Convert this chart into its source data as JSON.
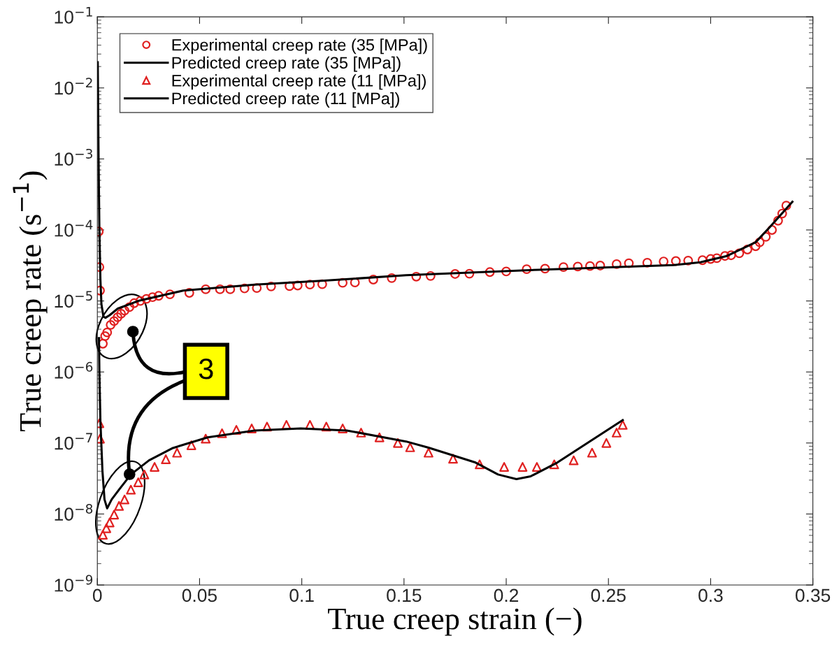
{
  "chart_data": {
    "type": "scatter",
    "xlabel": "True creep strain (−)",
    "ylabel": "True creep rate (s$^{−1}$)",
    "log": "y",
    "xlim": [
      0,
      0.35
    ],
    "xticks": [
      0,
      0.05,
      0.1,
      0.15,
      0.2,
      0.25,
      0.3,
      0.35
    ],
    "ylim": [
      1e-09,
      0.1
    ],
    "yticks": [
      {
        "value": 1e-09,
        "label": "10$^{−9}$"
      },
      {
        "value": 1e-08,
        "label": "10$^{−8}$"
      },
      {
        "value": 1e-07,
        "label": "10$^{−7}$"
      },
      {
        "value": 1e-06,
        "label": "10$^{−6}$"
      },
      {
        "value": 1e-05,
        "label": "10$^{−5}$"
      },
      {
        "value": 0.0001,
        "label": "10$^{−4}$"
      },
      {
        "value": 0.001,
        "label": "10$^{−3}$"
      },
      {
        "value": 0.01,
        "label": "10$^{−2}$"
      },
      {
        "value": 0.1,
        "label": "10$^{−1}$"
      }
    ],
    "grid": false,
    "legend": "top left",
    "annotations": [
      {
        "text": "3",
        "x": 0.0174,
        "y": 3.7e-06
      }
    ],
    "series": [
      {
        "name": "Experimental creep rate (35 [MPa])",
        "marker": "circle",
        "color": "#e02020",
        "x": [
          0.0007,
          0.001,
          0.0013,
          0.0027,
          0.0038,
          0.0048,
          0.0065,
          0.0082,
          0.0099,
          0.0116,
          0.0133,
          0.0157,
          0.018,
          0.021,
          0.024,
          0.027,
          0.03,
          0.0355,
          0.045,
          0.053,
          0.06,
          0.065,
          0.072,
          0.078,
          0.085,
          0.094,
          0.098,
          0.104,
          0.11,
          0.12,
          0.126,
          0.135,
          0.144,
          0.156,
          0.163,
          0.175,
          0.182,
          0.192,
          0.2,
          0.21,
          0.219,
          0.228,
          0.235,
          0.241,
          0.246,
          0.254,
          0.26,
          0.269,
          0.277,
          0.283,
          0.289,
          0.296,
          0.3,
          0.303,
          0.307,
          0.31,
          0.314,
          0.318,
          0.322,
          0.324,
          0.327,
          0.33,
          0.333,
          0.335,
          0.337
        ],
        "values": [
          9.5e-05,
          3e-05,
          1.4e-05,
          2.5e-06,
          3.2e-06,
          3.6e-06,
          4.6e-06,
          5.2e-06,
          5.9e-06,
          6.6e-06,
          7.3e-06,
          8.2e-06,
          9.3e-06,
          1e-05,
          1.07e-05,
          1.13e-05,
          1.18e-05,
          1.24e-05,
          1.3e-05,
          1.46e-05,
          1.46e-05,
          1.46e-05,
          1.5e-05,
          1.52e-05,
          1.6e-05,
          1.62e-05,
          1.65e-05,
          1.7e-05,
          1.72e-05,
          1.8e-05,
          1.82e-05,
          2e-05,
          2.1e-05,
          2.2e-05,
          2.25e-05,
          2.4e-05,
          2.42e-05,
          2.55e-05,
          2.6e-05,
          2.8e-05,
          2.85e-05,
          3e-05,
          3.05e-05,
          3.1e-05,
          3.15e-05,
          3.3e-05,
          3.4e-05,
          3.45e-05,
          3.6e-05,
          3.65e-05,
          3.7e-05,
          3.75e-05,
          3.9e-05,
          4e-05,
          4.3e-05,
          4.4e-05,
          4.7e-05,
          5.3e-05,
          5.9e-05,
          6.7e-05,
          8e-05,
          0.0001,
          0.000135,
          0.00017,
          0.00022
        ]
      },
      {
        "name": "Predicted creep rate (35 [MPa])",
        "type": "line",
        "marker": "none",
        "color": "#000000",
        "x": [
          0.0002,
          0.0006,
          0.001,
          0.0015,
          0.002,
          0.003,
          0.004,
          0.006,
          0.01,
          0.02,
          0.042,
          0.077,
          0.111,
          0.151,
          0.216,
          0.282,
          0.295,
          0.308,
          0.322,
          0.329,
          0.34
        ],
        "values": [
          0.023,
          0.001,
          0.0001,
          2e-05,
          9e-06,
          6e-06,
          5.8e-06,
          6.3e-06,
          7.8e-06,
          1e-05,
          1.4e-05,
          1.7e-05,
          1.93e-05,
          2.3e-05,
          2.75e-05,
          3.2e-05,
          3.5e-05,
          4.3e-05,
          6.7e-05,
          0.00011,
          0.00025
        ]
      },
      {
        "name": "Experimental creep rate (11 [MPa])",
        "marker": "triangle",
        "color": "#e02020",
        "x": [
          0.001,
          0.0013,
          0.0027,
          0.0044,
          0.006,
          0.0082,
          0.0106,
          0.0133,
          0.0164,
          0.02,
          0.023,
          0.028,
          0.0335,
          0.039,
          0.046,
          0.053,
          0.061,
          0.068,
          0.0755,
          0.083,
          0.0925,
          0.104,
          0.112,
          0.12,
          0.129,
          0.138,
          0.147,
          0.153,
          0.162,
          0.174,
          0.187,
          0.199,
          0.208,
          0.215,
          0.2235,
          0.233,
          0.242,
          0.249,
          0.254,
          0.257
        ],
        "values": [
          1.9e-07,
          1.15e-07,
          5.1e-09,
          6.3e-09,
          7.6e-09,
          9.8e-09,
          1.3e-08,
          1.6e-08,
          2.2e-08,
          2.8e-08,
          3.6e-08,
          4.6e-08,
          5.9e-08,
          7.3e-08,
          9.3e-08,
          1.15e-07,
          1.37e-07,
          1.53e-07,
          1.6e-07,
          1.7e-07,
          1.8e-07,
          1.8e-07,
          1.7e-07,
          1.6e-07,
          1.4e-07,
          1.2e-07,
          1e-07,
          8.7e-08,
          7.3e-08,
          6e-08,
          5e-08,
          4.6e-08,
          4.6e-08,
          4.6e-08,
          5e-08,
          5.7e-08,
          7.3e-08,
          1e-07,
          1.4e-07,
          1.8e-07
        ]
      },
      {
        "name": "Predicted creep rate (11 [MPa])",
        "type": "line",
        "marker": "none",
        "color": "#000000",
        "x": [
          0.0008,
          0.001,
          0.0015,
          0.0025,
          0.0035,
          0.0048,
          0.007,
          0.0106,
          0.0164,
          0.0253,
          0.037,
          0.054,
          0.077,
          0.0995,
          0.122,
          0.151,
          0.162,
          0.185,
          0.196,
          0.205,
          0.212,
          0.225,
          0.242,
          0.257
        ],
        "values": [
          3e-06,
          1e-06,
          2e-07,
          4e-08,
          1.6e-08,
          1.2e-08,
          1.6e-08,
          2.2e-08,
          3.6e-08,
          5.7e-08,
          8.5e-08,
          1.2e-07,
          1.5e-07,
          1.6e-07,
          1.5e-07,
          1.05e-07,
          8.6e-08,
          5.3e-08,
          3.6e-08,
          3.1e-08,
          3.4e-08,
          5.3e-08,
          1.1e-07,
          2.1e-07
        ]
      }
    ]
  }
}
